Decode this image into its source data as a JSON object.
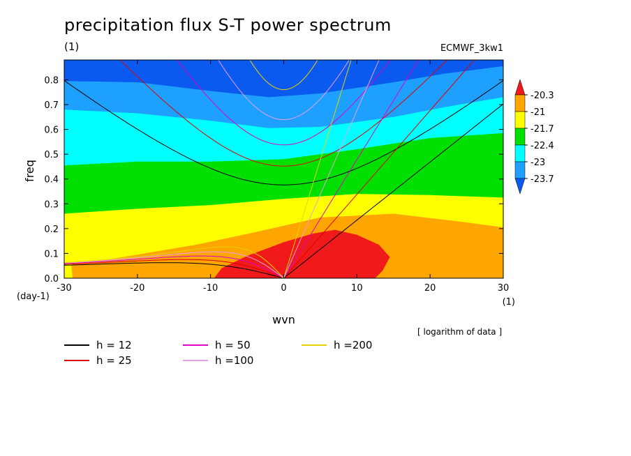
{
  "header": {
    "title": "precipitation flux S-T power spectrum",
    "subtitle": "(1)",
    "model": "ECMWF_3kw1",
    "note": "[ logarithm of data ]"
  },
  "colors": {
    "red": "#f01a1a",
    "orange": "#ffa500",
    "yellow": "#ffff00",
    "green": "#00e000",
    "cyan": "#00ffff",
    "skyblue": "#1ea0ff",
    "blue": "#0a5af0"
  },
  "chart_data": {
    "type": "contour",
    "title": "precipitation flux S-T power spectrum",
    "xlabel": "wvn",
    "ylabel": "freq",
    "xunit": "(1)",
    "yunit": "(day-1)",
    "xlim": [
      -30,
      30
    ],
    "ylim": [
      0,
      0.88
    ],
    "x_ticks": [
      -30,
      -20,
      -10,
      0,
      10,
      20,
      30
    ],
    "y_ticks": [
      0.0,
      0.1,
      0.2,
      0.3,
      0.4,
      0.5,
      0.6,
      0.7,
      0.8
    ],
    "x_tick_labels": [
      "-30",
      "-20",
      "-10",
      "0",
      "10",
      "20",
      "30"
    ],
    "y_tick_labels": [
      "0.0",
      "0.1",
      "0.2",
      "0.3",
      "0.4",
      "0.5",
      "0.6",
      "0.7",
      "0.8"
    ],
    "colorbar": {
      "levels": [
        "-20.3",
        "-21",
        "-21.7",
        "-22.4",
        "-23",
        "-23.7"
      ],
      "colors": [
        "#f01a1a",
        "#ffa500",
        "#ffff00",
        "#00e000",
        "#00ffff",
        "#1ea0ff",
        "#0a5af0"
      ]
    },
    "dispersion_curves": [
      {
        "name": "h = 12",
        "h": 12,
        "color": "#000000"
      },
      {
        "name": "h = 25",
        "h": 25,
        "color": "#e00000"
      },
      {
        "name": "h = 50",
        "h": 50,
        "color": "#e000c8"
      },
      {
        "name": "h =100",
        "h": 100,
        "color": "#e6a0e6"
      },
      {
        "name": "h =200",
        "h": 200,
        "color": "#e6d200"
      }
    ]
  }
}
